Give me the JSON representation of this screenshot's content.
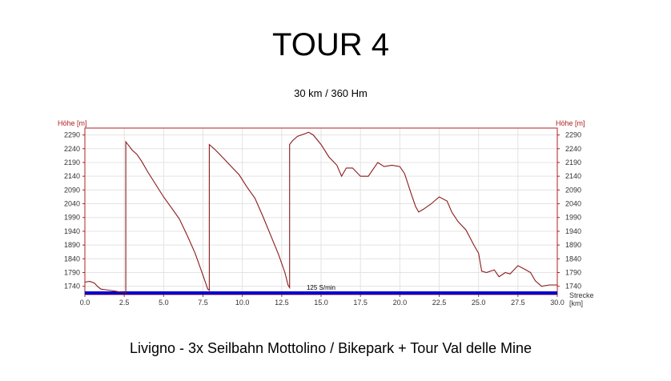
{
  "header": {
    "title": "TOUR 4",
    "subtitle": "30 km / 360 Hm"
  },
  "footer": {
    "caption": "Livigno - 3x Seilbahn Mottolino / Bikepark + Tour Val delle Mine"
  },
  "colors": {
    "profile_line": "#8b1a1a",
    "speed_band": "#0000cc",
    "frame": "#b02020",
    "grid": "#e3e3e3"
  },
  "chart_data": {
    "type": "line",
    "ylabel_left": "Höhe [m]",
    "ylabel_right": "Höhe [m]",
    "xlabel_line1": "Strecke",
    "xlabel_line2": "[km]",
    "band_label": "125 S/min",
    "xlim": [
      0,
      30
    ],
    "ylim": [
      1710,
      2315
    ],
    "x_ticks": [
      "0.0",
      "2.5",
      "5.0",
      "7.5",
      "10.0",
      "12.5",
      "15.0",
      "17.5",
      "20.0",
      "22.5",
      "25.0",
      "27.5",
      "30.0"
    ],
    "y_ticks": [
      "1740",
      "1790",
      "1840",
      "1890",
      "1940",
      "1990",
      "2040",
      "2090",
      "2140",
      "2190",
      "2240",
      "2290"
    ],
    "grid": true,
    "series": [
      {
        "points": [
          [
            0.0,
            1755
          ],
          [
            0.3,
            1758
          ],
          [
            0.6,
            1752
          ],
          [
            0.8,
            1740
          ],
          [
            1.0,
            1730
          ],
          [
            1.5,
            1726
          ],
          [
            2.0,
            1722
          ],
          [
            2.5,
            1716
          ],
          [
            2.6,
            1715
          ],
          [
            2.6,
            2265
          ],
          [
            2.8,
            2250
          ],
          [
            3.0,
            2235
          ],
          [
            3.3,
            2220
          ],
          [
            3.6,
            2195
          ],
          [
            4.0,
            2155
          ],
          [
            4.5,
            2110
          ],
          [
            5.0,
            2065
          ],
          [
            5.5,
            2025
          ],
          [
            6.0,
            1985
          ],
          [
            6.5,
            1925
          ],
          [
            7.0,
            1860
          ],
          [
            7.5,
            1780
          ],
          [
            7.8,
            1730
          ],
          [
            7.9,
            1725
          ],
          [
            7.9,
            2255
          ],
          [
            8.3,
            2235
          ],
          [
            8.8,
            2205
          ],
          [
            9.3,
            2175
          ],
          [
            9.8,
            2145
          ],
          [
            10.3,
            2100
          ],
          [
            10.8,
            2060
          ],
          [
            11.3,
            1995
          ],
          [
            11.8,
            1925
          ],
          [
            12.3,
            1855
          ],
          [
            12.7,
            1790
          ],
          [
            12.9,
            1745
          ],
          [
            13.0,
            1735
          ],
          [
            13.0,
            2255
          ],
          [
            13.2,
            2270
          ],
          [
            13.5,
            2285
          ],
          [
            14.0,
            2295
          ],
          [
            14.2,
            2300
          ],
          [
            14.5,
            2290
          ],
          [
            15.0,
            2255
          ],
          [
            15.5,
            2210
          ],
          [
            16.0,
            2180
          ],
          [
            16.3,
            2140
          ],
          [
            16.6,
            2170
          ],
          [
            17.0,
            2170
          ],
          [
            17.5,
            2140
          ],
          [
            18.0,
            2140
          ],
          [
            18.3,
            2165
          ],
          [
            18.6,
            2190
          ],
          [
            19.0,
            2175
          ],
          [
            19.5,
            2180
          ],
          [
            20.0,
            2175
          ],
          [
            20.3,
            2150
          ],
          [
            20.7,
            2080
          ],
          [
            21.0,
            2030
          ],
          [
            21.2,
            2010
          ],
          [
            21.5,
            2020
          ],
          [
            22.0,
            2040
          ],
          [
            22.5,
            2065
          ],
          [
            23.0,
            2050
          ],
          [
            23.3,
            2010
          ],
          [
            23.7,
            1975
          ],
          [
            24.2,
            1945
          ],
          [
            24.7,
            1890
          ],
          [
            25.0,
            1860
          ],
          [
            25.2,
            1795
          ],
          [
            25.5,
            1790
          ],
          [
            26.0,
            1800
          ],
          [
            26.3,
            1775
          ],
          [
            26.7,
            1790
          ],
          [
            27.0,
            1785
          ],
          [
            27.5,
            1815
          ],
          [
            28.0,
            1800
          ],
          [
            28.3,
            1790
          ],
          [
            28.6,
            1760
          ],
          [
            29.0,
            1740
          ],
          [
            29.5,
            1745
          ],
          [
            30.0,
            1745
          ]
        ]
      }
    ]
  }
}
